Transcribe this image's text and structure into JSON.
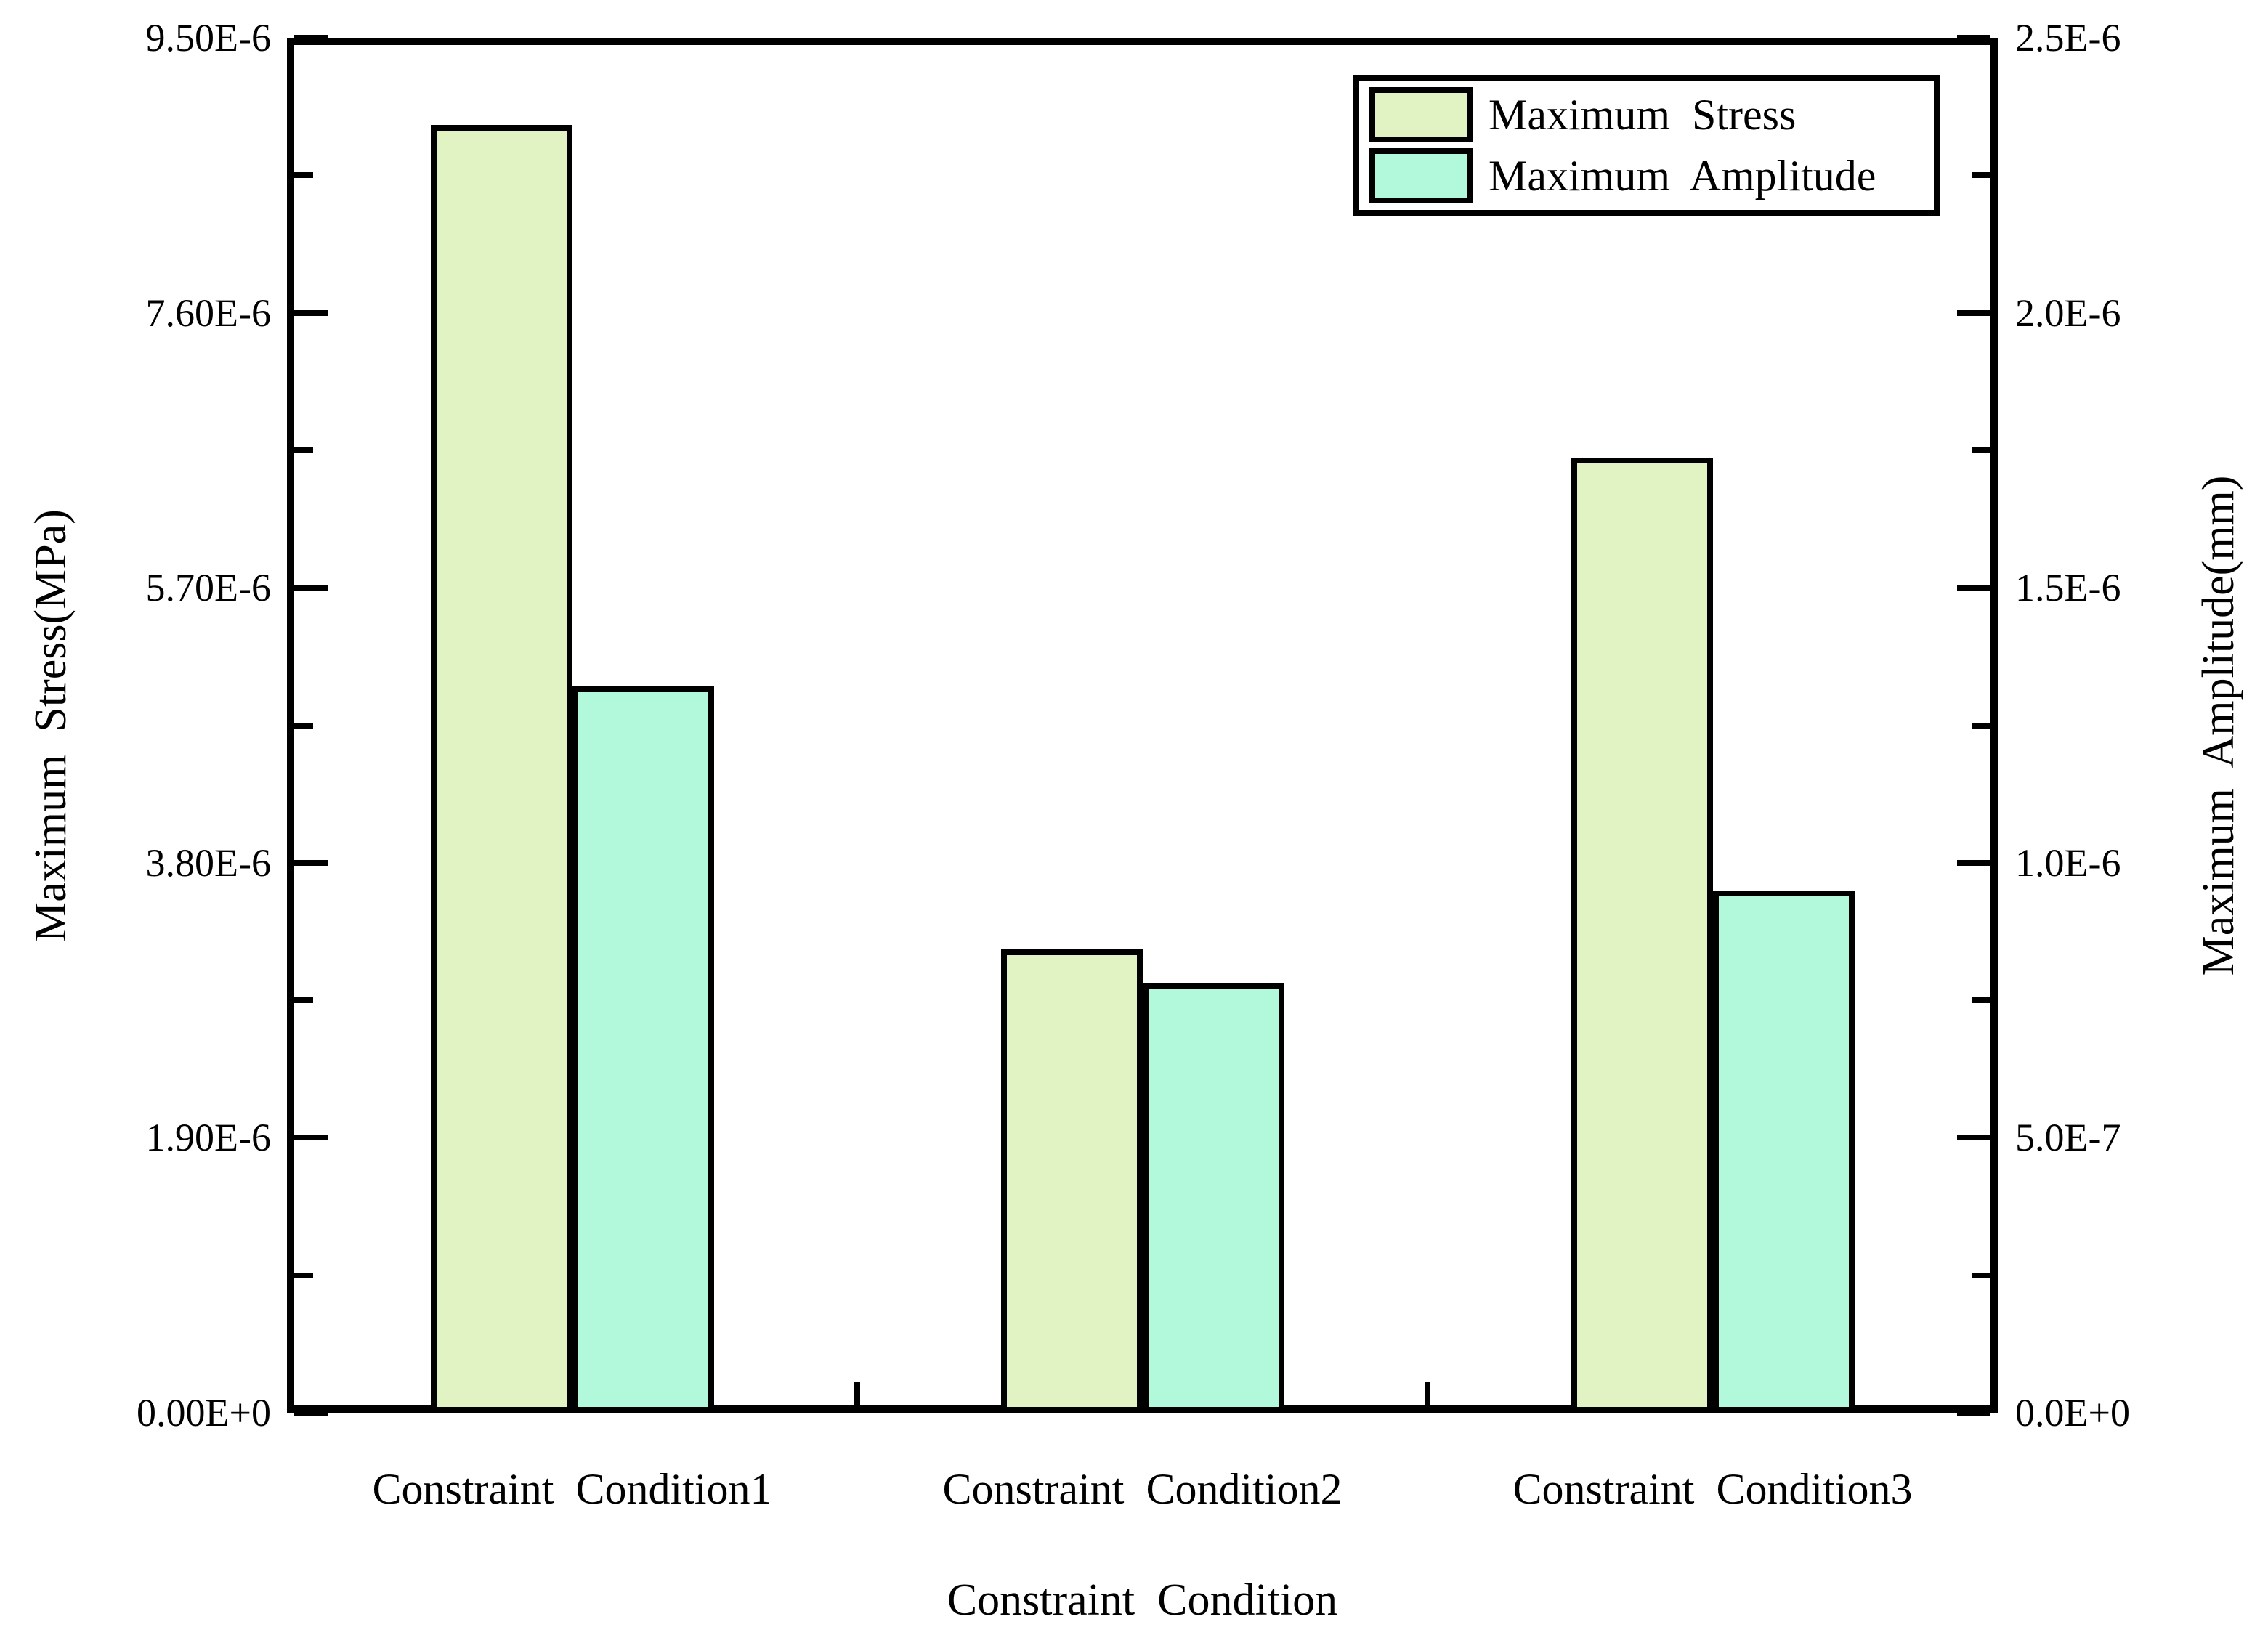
{
  "chart_data": {
    "type": "bar",
    "subtype": "grouped-dual-axis",
    "categories": [
      "Constraint  Condition1",
      "Constraint  Condition2",
      "Constraint  Condition3"
    ],
    "series": [
      {
        "name": "Maximum  Stress",
        "axis": "left",
        "color": "#e1f3c2",
        "values": [
          8.9e-06,
          3.2e-06,
          6.6e-06
        ]
      },
      {
        "name": "Maximum  Amplitude",
        "axis": "right",
        "color": "#b2f8da",
        "values": [
          1.32e-06,
          7.8e-07,
          9.5e-07
        ]
      }
    ],
    "left_axis": {
      "label": "Maximum  Stress(MPa)",
      "ticks": [
        "0.00E+0",
        "1.90E-6",
        "3.80E-6",
        "5.70E-6",
        "7.60E-6",
        "9.50E-6"
      ],
      "min": 0,
      "max": 9.5e-06
    },
    "right_axis": {
      "label": "Maximum  Amplitude(mm)",
      "ticks": [
        "0.0E+0",
        "5.0E-7",
        "1.0E-6",
        "1.5E-6",
        "2.0E-6",
        "2.5E-6"
      ],
      "min": 0,
      "max": 2.5e-06
    },
    "xlabel": "Constraint  Condition",
    "legend": {
      "position": "top-right",
      "entries": [
        "Maximum  Stress",
        "Maximum  Amplitude"
      ]
    },
    "grid": false,
    "colors": {
      "axis": "#000000",
      "bar_border": "#000000",
      "background": "#ffffff",
      "text": "#000000"
    }
  }
}
